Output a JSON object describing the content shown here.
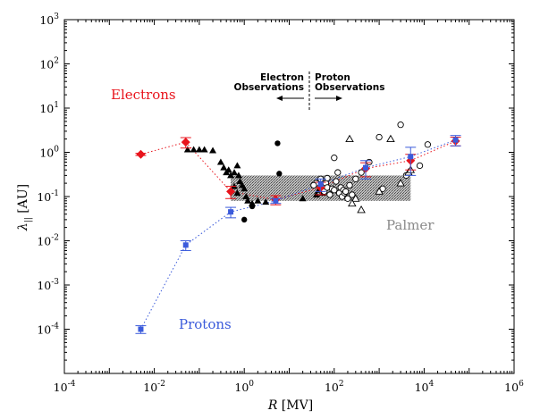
{
  "chart_data": {
    "type": "scatter",
    "xlabel": "R [MV]",
    "ylabel": "λ|| [AU]",
    "xscale": "log",
    "yscale": "log",
    "xlim": [
      0.0001,
      1000000
    ],
    "ylim": [
      1e-05,
      1000
    ],
    "grid": false,
    "x_ticks": [
      {
        "base": "10",
        "exp": "-4"
      },
      {
        "base": "10",
        "exp": "-2"
      },
      {
        "base": "10",
        "exp": "0"
      },
      {
        "base": "10",
        "exp": "2"
      },
      {
        "base": "10",
        "exp": "4"
      },
      {
        "base": "10",
        "exp": "6"
      }
    ],
    "y_ticks": [
      {
        "base": "10",
        "exp": "-4"
      },
      {
        "base": "10",
        "exp": "-3"
      },
      {
        "base": "10",
        "exp": "-2"
      },
      {
        "base": "10",
        "exp": "-1"
      },
      {
        "base": "10",
        "exp": "0"
      },
      {
        "base": "10",
        "exp": "1"
      },
      {
        "base": "10",
        "exp": "2"
      },
      {
        "base": "10",
        "exp": "3"
      }
    ],
    "annotations": {
      "electrons_label": "Electrons",
      "protons_label": "Protons",
      "palmer_label": "Palmer",
      "electron_obs_line1": "Electron",
      "electron_obs_line2": "Observations",
      "proton_obs_line1": "Proton",
      "proton_obs_line2": "Observations"
    },
    "colors": {
      "electrons": "#e8141c",
      "protons": "#3b5bdb",
      "palmer": "#8a8a8a",
      "observations": "#000000"
    },
    "palmer_band": {
      "x_range": [
        0.5,
        5000
      ],
      "y_range": [
        0.08,
        0.3
      ]
    },
    "series": [
      {
        "name": "Electrons",
        "marker": "diamond",
        "points": [
          {
            "x": 0.005,
            "y": 0.9,
            "err": 0.05
          },
          {
            "x": 0.05,
            "y": 1.7,
            "err": 0.45
          },
          {
            "x": 0.5,
            "y": 0.13,
            "err": 0.04
          },
          {
            "x": 5,
            "y": 0.085,
            "err": 0.02
          },
          {
            "x": 50,
            "y": 0.16,
            "err": 0.05
          },
          {
            "x": 500,
            "y": 0.43,
            "err": 0.15
          },
          {
            "x": 5000,
            "y": 0.65,
            "err": 0.25
          },
          {
            "x": 50000,
            "y": 1.8,
            "err": 0.4
          }
        ]
      },
      {
        "name": "Protons",
        "marker": "square",
        "points": [
          {
            "x": 0.005,
            "y": 0.0001,
            "err": 2e-05
          },
          {
            "x": 0.05,
            "y": 0.008,
            "err": 0.002
          },
          {
            "x": 0.5,
            "y": 0.045,
            "err": 0.012
          },
          {
            "x": 5,
            "y": 0.08,
            "err": 0.01
          },
          {
            "x": 50,
            "y": 0.19,
            "err": 0.06
          },
          {
            "x": 500,
            "y": 0.45,
            "err": 0.2
          },
          {
            "x": 5000,
            "y": 0.8,
            "err": 0.5
          },
          {
            "x": 50000,
            "y": 1.9,
            "err": 0.5
          }
        ]
      },
      {
        "name": "",
        "marker": "filled-triangle",
        "points": [
          {
            "x": 0.055,
            "y": 1.15
          },
          {
            "x": 0.075,
            "y": 1.15
          },
          {
            "x": 0.1,
            "y": 1.15
          },
          {
            "x": 0.13,
            "y": 1.15
          },
          {
            "x": 0.2,
            "y": 1.1
          },
          {
            "x": 0.3,
            "y": 0.6
          },
          {
            "x": 0.35,
            "y": 0.45
          },
          {
            "x": 0.4,
            "y": 0.35
          },
          {
            "x": 0.45,
            "y": 0.4
          },
          {
            "x": 0.5,
            "y": 0.3
          },
          {
            "x": 0.6,
            "y": 0.35
          },
          {
            "x": 0.7,
            "y": 0.5
          },
          {
            "x": 0.75,
            "y": 0.3
          },
          {
            "x": 0.8,
            "y": 0.22
          },
          {
            "x": 0.9,
            "y": 0.18
          },
          {
            "x": 1.0,
            "y": 0.15
          },
          {
            "x": 1.1,
            "y": 0.1
          },
          {
            "x": 1.2,
            "y": 0.08
          },
          {
            "x": 1.5,
            "y": 0.07
          },
          {
            "x": 2.0,
            "y": 0.08
          },
          {
            "x": 3.0,
            "y": 0.075
          },
          {
            "x": 0.6,
            "y": 0.17
          },
          {
            "x": 0.7,
            "y": 0.12
          },
          {
            "x": 20,
            "y": 0.09
          },
          {
            "x": 40,
            "y": 0.11
          },
          {
            "x": 45,
            "y": 0.14
          },
          {
            "x": 55,
            "y": 0.12
          }
        ]
      },
      {
        "name": "",
        "marker": "filled-circle",
        "points": [
          {
            "x": 1.0,
            "y": 0.03
          },
          {
            "x": 1.5,
            "y": 0.06
          },
          {
            "x": 5.5,
            "y": 1.6
          },
          {
            "x": 6,
            "y": 0.33
          }
        ]
      },
      {
        "name": "",
        "marker": "open-circle",
        "points": [
          {
            "x": 40,
            "y": 0.2
          },
          {
            "x": 50,
            "y": 0.25
          },
          {
            "x": 55,
            "y": 0.17
          },
          {
            "x": 60,
            "y": 0.13
          },
          {
            "x": 65,
            "y": 0.2
          },
          {
            "x": 70,
            "y": 0.16
          },
          {
            "x": 80,
            "y": 0.11
          },
          {
            "x": 90,
            "y": 0.15
          },
          {
            "x": 100,
            "y": 0.75
          },
          {
            "x": 100,
            "y": 0.14
          },
          {
            "x": 110,
            "y": 0.22
          },
          {
            "x": 120,
            "y": 0.35
          },
          {
            "x": 130,
            "y": 0.12
          },
          {
            "x": 140,
            "y": 0.16
          },
          {
            "x": 150,
            "y": 0.1
          },
          {
            "x": 160,
            "y": 0.14
          },
          {
            "x": 170,
            "y": 0.12
          },
          {
            "x": 180,
            "y": 0.13
          },
          {
            "x": 200,
            "y": 0.09
          },
          {
            "x": 220,
            "y": 0.18
          },
          {
            "x": 250,
            "y": 0.11
          },
          {
            "x": 300,
            "y": 0.25
          },
          {
            "x": 400,
            "y": 0.35
          },
          {
            "x": 600,
            "y": 0.6
          },
          {
            "x": 1000,
            "y": 2.2
          },
          {
            "x": 1200,
            "y": 0.15
          },
          {
            "x": 3000,
            "y": 4.2
          },
          {
            "x": 4000,
            "y": 0.3
          },
          {
            "x": 8000,
            "y": 0.5
          },
          {
            "x": 12000,
            "y": 1.5
          },
          {
            "x": 70,
            "y": 0.26
          },
          {
            "x": 35,
            "y": 0.18
          }
        ]
      },
      {
        "name": "",
        "marker": "open-triangle",
        "points": [
          {
            "x": 220,
            "y": 2.0
          },
          {
            "x": 300,
            "y": 0.09
          },
          {
            "x": 400,
            "y": 0.05
          },
          {
            "x": 1000,
            "y": 0.13
          },
          {
            "x": 1800,
            "y": 2.0
          },
          {
            "x": 3000,
            "y": 0.2
          },
          {
            "x": 4500,
            "y": 0.35
          },
          {
            "x": 5000,
            "y": 0.4
          },
          {
            "x": 250,
            "y": 0.07
          }
        ]
      }
    ]
  }
}
